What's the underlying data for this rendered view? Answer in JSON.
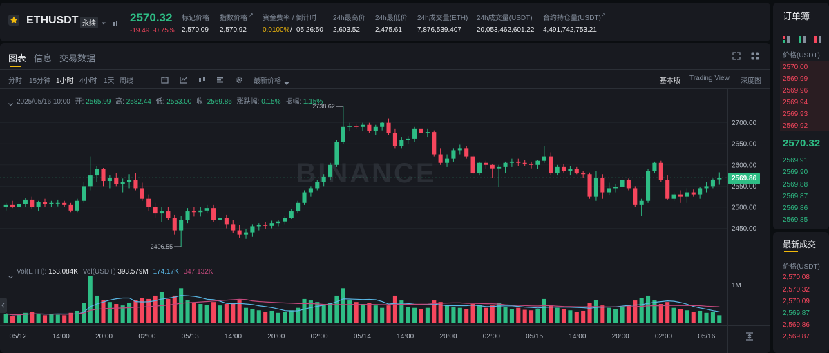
{
  "header": {
    "symbol": "ETHUSDT",
    "contract_type": "永续",
    "last_price": "2570.32",
    "change": "-19.49",
    "change_pct": "-0.75%",
    "stats": [
      {
        "label": "标记价格",
        "value": "2,570.09"
      },
      {
        "label": "指数价格",
        "value": "2,570.92"
      },
      {
        "label": "资金费率 / 倒计时",
        "value_a": "0.0100%",
        "value_b": "05:26:50"
      },
      {
        "label": "24h最高价",
        "value": "2,603.52"
      },
      {
        "label": "24h最低价",
        "value": "2,475.61"
      },
      {
        "label": "24h成交量(ETH)",
        "value": "7,876,539.407"
      },
      {
        "label": "24h成交量(USDT)",
        "value": "20,053,462,601.22"
      },
      {
        "label": "合约持仓量(USDT)",
        "value": "4,491,742,753.21"
      }
    ]
  },
  "tabs": [
    "图表",
    "信息",
    "交易数据"
  ],
  "toolbar": {
    "intervals": [
      "分时",
      "15分钟",
      "1小时",
      "4小时",
      "1天",
      "周线"
    ],
    "active_interval": "1小时",
    "price_type": "最新价格",
    "views": [
      "基本版",
      "Trading View",
      "深度图"
    ]
  },
  "ohlc": {
    "date": "2025/05/16 10:00",
    "open_label": "开:",
    "open": "2565.99",
    "high_label": "高:",
    "high": "2582.44",
    "low_label": "低:",
    "low": "2553.00",
    "close_label": "收:",
    "close": "2569.86",
    "chg_label": "涨跌幅:",
    "chg": "0.15%",
    "amp_label": "振幅:",
    "amp": "1.15%"
  },
  "volume_legend": {
    "vol_eth_label": "Vol(ETH):",
    "vol_eth": "153.084K",
    "vol_usdt_label": "Vol(USDT)",
    "vol_usdt": "393.579M",
    "ma1": "174.17K",
    "ma2": "347.132K"
  },
  "watermark": "BINANCE",
  "annotations": {
    "high": "2738.62",
    "low": "2406.55"
  },
  "price_tag": "2569.86",
  "colors": {
    "up": "#2ebd85",
    "down": "#f6465d",
    "accent": "#f0b90b",
    "ma1": "#5ab8e6",
    "ma2": "#c2497c"
  },
  "chart_data": {
    "type": "candlestick",
    "title": "",
    "y_ticks": [
      "2700.00",
      "2650.00",
      "2600.00",
      "2550.00",
      "2500.00",
      "2450.00"
    ],
    "ylim": [
      2405,
      2742
    ],
    "vol_tick": "1M",
    "x_ticks": [
      "05/12",
      "14:00",
      "20:00",
      "02:00",
      "05/13",
      "14:00",
      "20:00",
      "02:00",
      "05/14",
      "14:00",
      "20:00",
      "02:00",
      "05/15",
      "14:00",
      "20:00",
      "02:00",
      "05/16"
    ],
    "ohlc": [
      [
        2500,
        2510,
        2492,
        2505
      ],
      [
        2505,
        2515,
        2498,
        2500
      ],
      [
        2500,
        2512,
        2493,
        2508
      ],
      [
        2508,
        2522,
        2500,
        2518
      ],
      [
        2518,
        2525,
        2495,
        2500
      ],
      [
        2500,
        2515,
        2490,
        2512
      ],
      [
        2512,
        2520,
        2500,
        2507
      ],
      [
        2507,
        2515,
        2500,
        2510
      ],
      [
        2510,
        2518,
        2502,
        2510
      ],
      [
        2510,
        2515,
        2500,
        2505
      ],
      [
        2505,
        2510,
        2488,
        2492
      ],
      [
        2492,
        2520,
        2488,
        2515
      ],
      [
        2515,
        2560,
        2510,
        2550
      ],
      [
        2550,
        2620,
        2540,
        2575
      ],
      [
        2575,
        2598,
        2560,
        2590
      ],
      [
        2590,
        2593,
        2550,
        2562
      ],
      [
        2562,
        2575,
        2545,
        2570
      ],
      [
        2570,
        2580,
        2550,
        2555
      ],
      [
        2555,
        2568,
        2535,
        2560
      ],
      [
        2560,
        2578,
        2545,
        2565
      ],
      [
        2565,
        2580,
        2540,
        2545
      ],
      [
        2545,
        2558,
        2515,
        2520
      ],
      [
        2520,
        2530,
        2490,
        2500
      ],
      [
        2500,
        2510,
        2475,
        2485
      ],
      [
        2485,
        2500,
        2465,
        2490
      ],
      [
        2490,
        2500,
        2470,
        2475
      ],
      [
        2475,
        2482,
        2435,
        2445
      ],
      [
        2445,
        2480,
        2406.55,
        2470
      ],
      [
        2470,
        2498,
        2462,
        2490
      ],
      [
        2490,
        2500,
        2478,
        2488
      ],
      [
        2488,
        2500,
        2478,
        2492
      ],
      [
        2492,
        2505,
        2485,
        2498
      ],
      [
        2498,
        2505,
        2465,
        2470
      ],
      [
        2470,
        2480,
        2455,
        2475
      ],
      [
        2475,
        2482,
        2450,
        2460
      ],
      [
        2460,
        2470,
        2438,
        2445
      ],
      [
        2445,
        2458,
        2428,
        2435
      ],
      [
        2435,
        2448,
        2425,
        2440
      ],
      [
        2440,
        2460,
        2430,
        2455
      ],
      [
        2455,
        2462,
        2445,
        2458
      ],
      [
        2458,
        2465,
        2448,
        2456
      ],
      [
        2456,
        2468,
        2450,
        2462
      ],
      [
        2462,
        2470,
        2455,
        2466
      ],
      [
        2466,
        2480,
        2460,
        2475
      ],
      [
        2475,
        2495,
        2472,
        2490
      ],
      [
        2490,
        2515,
        2485,
        2510
      ],
      [
        2510,
        2540,
        2505,
        2535
      ],
      [
        2535,
        2550,
        2525,
        2545
      ],
      [
        2545,
        2565,
        2540,
        2560
      ],
      [
        2560,
        2578,
        2550,
        2572
      ],
      [
        2572,
        2605,
        2565,
        2600
      ],
      [
        2600,
        2660,
        2595,
        2655
      ],
      [
        2655,
        2738.62,
        2650,
        2690
      ],
      [
        2690,
        2700,
        2680,
        2692
      ],
      [
        2692,
        2698,
        2685,
        2690
      ],
      [
        2690,
        2700,
        2680,
        2695
      ],
      [
        2695,
        2700,
        2675,
        2680
      ],
      [
        2680,
        2695,
        2670,
        2690
      ],
      [
        2690,
        2702,
        2682,
        2700
      ],
      [
        2700,
        2710,
        2670,
        2675
      ],
      [
        2675,
        2685,
        2640,
        2645
      ],
      [
        2645,
        2665,
        2640,
        2660
      ],
      [
        2660,
        2668,
        2650,
        2662
      ],
      [
        2662,
        2690,
        2655,
        2685
      ],
      [
        2685,
        2690,
        2670,
        2675
      ],
      [
        2675,
        2685,
        2665,
        2678
      ],
      [
        2678,
        2682,
        2620,
        2625
      ],
      [
        2625,
        2640,
        2600,
        2605
      ],
      [
        2605,
        2625,
        2595,
        2615
      ],
      [
        2615,
        2640,
        2608,
        2635
      ],
      [
        2635,
        2648,
        2625,
        2640
      ],
      [
        2640,
        2645,
        2615,
        2620
      ],
      [
        2620,
        2625,
        2578,
        2580
      ],
      [
        2580,
        2608,
        2575,
        2605
      ],
      [
        2605,
        2610,
        2590,
        2600
      ],
      [
        2600,
        2603,
        2570,
        2592
      ],
      [
        2592,
        2600,
        2548,
        2595
      ],
      [
        2595,
        2608,
        2580,
        2605
      ],
      [
        2605,
        2615,
        2595,
        2608
      ],
      [
        2608,
        2615,
        2598,
        2605
      ],
      [
        2605,
        2612,
        2598,
        2603
      ],
      [
        2603,
        2608,
        2592,
        2600
      ],
      [
        2600,
        2612,
        2590,
        2610
      ],
      [
        2610,
        2645,
        2605,
        2620
      ],
      [
        2620,
        2630,
        2575,
        2580
      ],
      [
        2580,
        2600,
        2575,
        2595
      ],
      [
        2595,
        2602,
        2582,
        2585
      ],
      [
        2585,
        2598,
        2575,
        2590
      ],
      [
        2590,
        2595,
        2578,
        2580
      ],
      [
        2580,
        2585,
        2570,
        2578
      ],
      [
        2578,
        2582,
        2520,
        2525
      ],
      [
        2525,
        2585,
        2515,
        2570
      ],
      [
        2570,
        2578,
        2520,
        2535
      ],
      [
        2535,
        2558,
        2528,
        2545
      ],
      [
        2545,
        2555,
        2535,
        2548
      ],
      [
        2548,
        2575,
        2540,
        2565
      ],
      [
        2565,
        2568,
        2540,
        2545
      ],
      [
        2545,
        2550,
        2500,
        2505
      ],
      [
        2505,
        2520,
        2480,
        2515
      ],
      [
        2515,
        2590,
        2510,
        2585
      ],
      [
        2585,
        2608,
        2580,
        2605
      ],
      [
        2605,
        2610,
        2560,
        2565
      ],
      [
        2565,
        2575,
        2518,
        2520
      ],
      [
        2520,
        2535,
        2515,
        2530
      ],
      [
        2530,
        2540,
        2510,
        2525
      ],
      [
        2525,
        2545,
        2510,
        2535
      ],
      [
        2535,
        2542,
        2525,
        2530
      ],
      [
        2530,
        2548,
        2520,
        2545
      ],
      [
        2545,
        2560,
        2535,
        2550
      ],
      [
        2550,
        2568,
        2545,
        2565
      ],
      [
        2565.99,
        2582.44,
        2553,
        2569.86
      ]
    ],
    "volumes": [
      0.18,
      0.14,
      0.16,
      0.2,
      0.22,
      0.17,
      0.15,
      0.18,
      0.16,
      0.15,
      0.2,
      0.24,
      0.4,
      0.95,
      0.55,
      0.45,
      0.42,
      0.38,
      0.35,
      0.4,
      0.45,
      0.5,
      0.48,
      0.55,
      0.62,
      0.48,
      0.55,
      0.7,
      0.45,
      0.4,
      0.38,
      0.36,
      0.42,
      0.35,
      0.38,
      0.4,
      0.45,
      0.3,
      0.28,
      0.25,
      0.22,
      0.24,
      0.2,
      0.22,
      0.25,
      0.3,
      0.48,
      0.45,
      0.42,
      0.38,
      0.4,
      0.55,
      0.7,
      0.45,
      0.42,
      0.38,
      0.4,
      0.35,
      0.3,
      0.35,
      0.55,
      0.45,
      0.32,
      0.3,
      0.28,
      0.3,
      0.45,
      0.42,
      0.35,
      0.32,
      0.3,
      0.28,
      0.38,
      0.36,
      0.3,
      0.35,
      0.4,
      0.32,
      0.28,
      0.3,
      0.26,
      0.25,
      0.28,
      0.48,
      0.35,
      0.3,
      0.28,
      0.25,
      0.22,
      0.24,
      0.4,
      0.46,
      0.35,
      0.3,
      0.28,
      0.32,
      0.35,
      0.45,
      0.5,
      0.55,
      0.45,
      0.38,
      0.42,
      0.3,
      0.28,
      0.25,
      0.22,
      0.24,
      0.2,
      0.22,
      0.15
    ],
    "volume_unit": "millions ETH"
  },
  "order_book": {
    "title": "订单簿",
    "col_label": "价格(USDT)",
    "asks": [
      "2570.00",
      "2569.99",
      "2569.96",
      "2569.94",
      "2569.93",
      "2569.92"
    ],
    "mid": "2570.32",
    "bids": [
      "2569.91",
      "2569.90",
      "2569.88",
      "2569.87",
      "2569.86",
      "2569.85"
    ]
  },
  "trades": {
    "title": "最新成交",
    "col_label": "价格(USDT)",
    "rows": [
      {
        "price": "2,570.08",
        "side": "sell"
      },
      {
        "price": "2,570.32",
        "side": "sell"
      },
      {
        "price": "2,570.09",
        "side": "sell"
      },
      {
        "price": "2,569.87",
        "side": "buy"
      },
      {
        "price": "2,569.86",
        "side": "sell"
      },
      {
        "price": "2,569.87",
        "side": "sell"
      }
    ]
  }
}
